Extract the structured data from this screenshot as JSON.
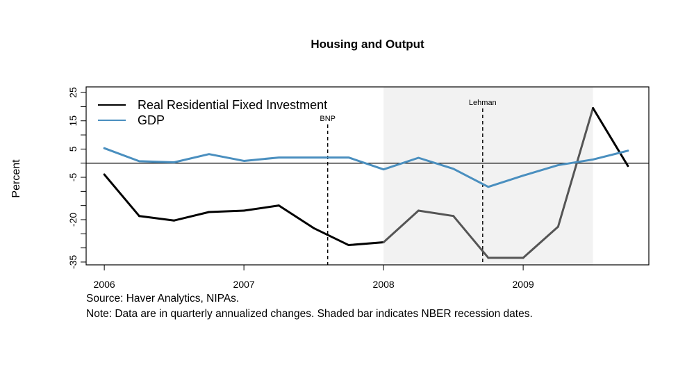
{
  "chart_data": {
    "type": "line",
    "title": "Housing and Output",
    "xlabel": "",
    "ylabel": "Percent",
    "x": [
      2006.0,
      2006.25,
      2006.5,
      2006.75,
      2007.0,
      2007.25,
      2007.5,
      2007.75,
      2008.0,
      2008.25,
      2008.5,
      2008.75,
      2009.0,
      2009.25,
      2009.5,
      2009.75
    ],
    "xlim": [
      2005.87,
      2009.9
    ],
    "ylim": [
      -36,
      27
    ],
    "x_ticks": [
      2006,
      2007,
      2008,
      2009
    ],
    "x_tick_labels": [
      "2006",
      "2007",
      "2008",
      "2009"
    ],
    "y_ticks": [
      25,
      15,
      5,
      -5,
      -20,
      -35
    ],
    "y_tick_labels": [
      "25",
      "15",
      "5",
      "-5",
      "-20",
      "-35"
    ],
    "y_minor_ticks": [
      20,
      10,
      0,
      -10,
      -15,
      -25,
      -30
    ],
    "zero_line": 0,
    "series": [
      {
        "name": "Real Residential Fixed Investment",
        "color": "#000000",
        "recession_color": "#555555",
        "values": [
          -4,
          -18.7,
          -20.3,
          -17.3,
          -16.8,
          -15,
          -23,
          -29,
          -28,
          -16.8,
          -18.7,
          -33.5,
          -33.5,
          -22.5,
          19.5,
          -1
        ]
      },
      {
        "name": "GDP",
        "color": "#4a8fbf",
        "values": [
          5.3,
          0.7,
          0.3,
          3.2,
          0.8,
          2,
          2,
          2,
          -2.2,
          1.9,
          -2,
          -8.4,
          -4.4,
          -0.7,
          1.3,
          4.4
        ]
      }
    ],
    "recession": {
      "start": 2008.0,
      "end": 2009.5,
      "color": "#f2f2f2"
    },
    "annotations": [
      {
        "label": "BNP",
        "x": 2007.6
      },
      {
        "label": "Lehman",
        "x": 2008.71
      }
    ],
    "legend": "top-left",
    "grid": false
  },
  "footer": {
    "source": "Source: Haver Analytics, NIPAs.",
    "note": "Note: Data are in quarterly annualized changes. Shaded bar indicates NBER recession dates."
  }
}
